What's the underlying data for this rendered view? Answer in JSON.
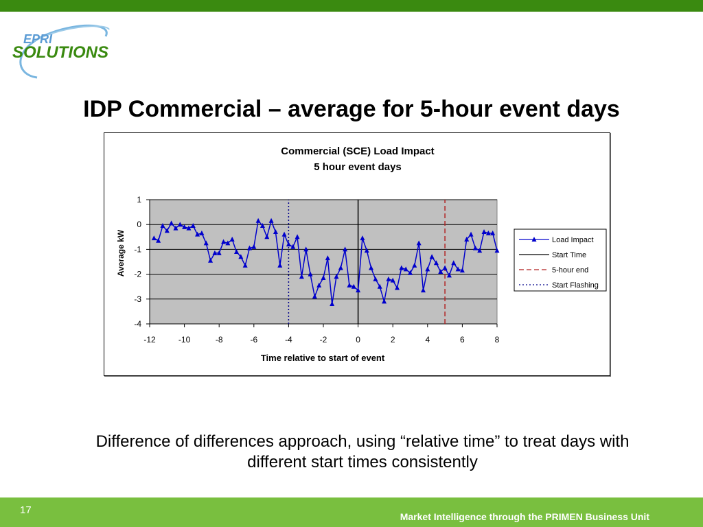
{
  "slide": {
    "title": "IDP Commercial – average for 5-hour event days",
    "caption": "Difference of differences approach, using “relative time” to treat days with different start times consistently",
    "number": "17",
    "footer": "Market Intelligence through the PRIMEN Business Unit",
    "logo": {
      "top": "EPRI",
      "bottom": "SOLUTIONS"
    }
  },
  "colors": {
    "top_bar": "#3a8a10",
    "bottom_bar": "#79bf3f",
    "plot_bg": "#c0c0c0",
    "series": "#0000cc",
    "start_time": "#000000",
    "five_hour_end": "#b22222",
    "start_flashing": "#00008b"
  },
  "chart_data": {
    "type": "line",
    "title": "Commercial (SCE) Load Impact",
    "subtitle": "5 hour event days",
    "xlabel": "Time relative to start of event",
    "ylabel": "Average kW",
    "xlim": [
      -12,
      8
    ],
    "ylim": [
      -4,
      1
    ],
    "xticks": [
      -12,
      -10,
      -8,
      -6,
      -4,
      -2,
      0,
      2,
      4,
      6,
      8
    ],
    "yticks": [
      1,
      0,
      -1,
      -2,
      -3,
      -4
    ],
    "grid": true,
    "legend_position": "right",
    "series": [
      {
        "name": "Load Impact",
        "marker": "triangle",
        "x": [
          -11.75,
          -11.5,
          -11.25,
          -11,
          -10.75,
          -10.5,
          -10.25,
          -10,
          -9.75,
          -9.5,
          -9.25,
          -9,
          -8.75,
          -8.5,
          -8.25,
          -8,
          -7.75,
          -7.5,
          -7.25,
          -7,
          -6.75,
          -6.5,
          -6.25,
          -6,
          -5.75,
          -5.5,
          -5.25,
          -5,
          -4.75,
          -4.5,
          -4.25,
          -4,
          -3.75,
          -3.5,
          -3.25,
          -3,
          -2.75,
          -2.5,
          -2.25,
          -2,
          -1.75,
          -1.5,
          -1.25,
          -1,
          -0.75,
          -0.5,
          -0.25,
          0,
          0.25,
          0.5,
          0.75,
          1,
          1.25,
          1.5,
          1.75,
          2,
          2.25,
          2.5,
          2.75,
          3,
          3.25,
          3.5,
          3.75,
          4,
          4.25,
          4.5,
          4.75,
          5,
          5.25,
          5.5,
          5.75,
          6,
          6.25,
          6.5,
          6.75,
          7,
          7.25,
          7.5,
          7.75,
          8
        ],
        "y": [
          -0.55,
          -0.65,
          -0.05,
          -0.25,
          0.05,
          -0.15,
          0.0,
          -0.1,
          -0.15,
          -0.05,
          -0.4,
          -0.35,
          -0.75,
          -1.45,
          -1.15,
          -1.15,
          -0.7,
          -0.75,
          -0.6,
          -1.1,
          -1.3,
          -1.65,
          -0.95,
          -0.9,
          0.15,
          -0.05,
          -0.5,
          0.15,
          -0.3,
          -1.65,
          -0.4,
          -0.8,
          -0.9,
          -0.5,
          -2.1,
          -1.0,
          -2.0,
          -2.9,
          -2.45,
          -2.15,
          -1.35,
          -3.2,
          -2.1,
          -1.75,
          -1.0,
          -2.45,
          -2.5,
          -2.65,
          -0.55,
          -1.05,
          -1.75,
          -2.2,
          -2.5,
          -3.1,
          -2.2,
          -2.25,
          -2.55,
          -1.75,
          -1.8,
          -1.95,
          -1.65,
          -0.75,
          -2.65,
          -1.8,
          -1.3,
          -1.55,
          -1.9,
          -1.75,
          -2.05,
          -1.55,
          -1.8,
          -1.85,
          -0.6,
          -0.4,
          -0.95,
          -1.05,
          -0.3,
          -0.35,
          -0.35,
          -1.05
        ]
      },
      {
        "name": "Start Time",
        "x": [
          0,
          0
        ],
        "y": [
          -4,
          1
        ]
      },
      {
        "name": "5-hour end",
        "x": [
          5,
          5
        ],
        "y": [
          -4,
          1
        ]
      },
      {
        "name": "Start Flashing",
        "x": [
          -4,
          -4
        ],
        "y": [
          -4,
          1
        ]
      }
    ]
  }
}
